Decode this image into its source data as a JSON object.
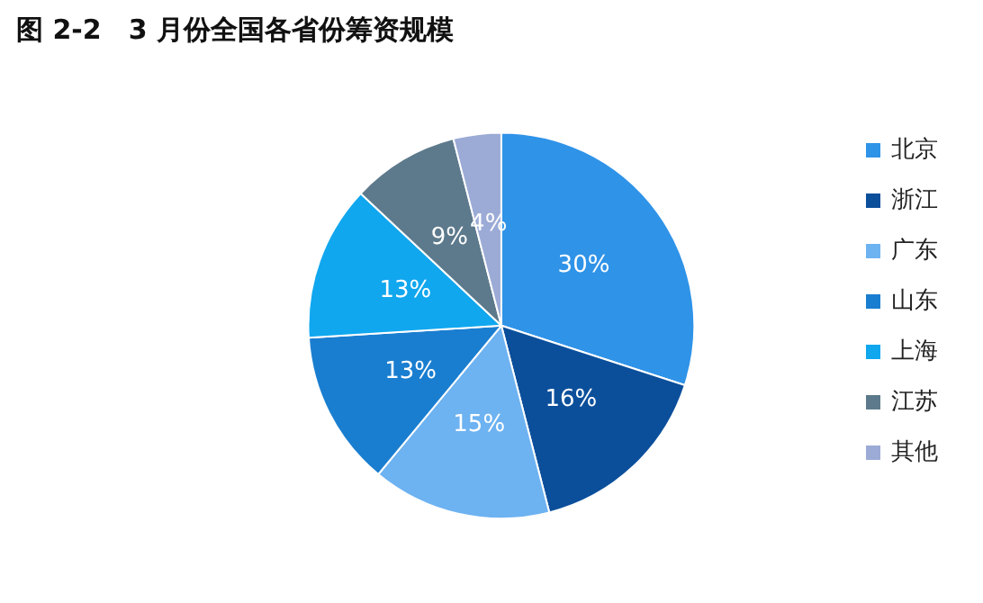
{
  "chart_data": {
    "type": "pie",
    "title": "图 2-2　3 月份全国各省份筹资规模",
    "categories": [
      "北京",
      "浙江",
      "广东",
      "山东",
      "上海",
      "江苏",
      "其他"
    ],
    "values": [
      30,
      16,
      15,
      13,
      13,
      9,
      4
    ],
    "value_labels": [
      "30%",
      "16%",
      "15%",
      "13%",
      "13%",
      "9%",
      "4%"
    ],
    "colors": [
      "#2f93e8",
      "#0b4f9b",
      "#6db2f1",
      "#1a7ed0",
      "#10a7ef",
      "#5d7a8c",
      "#9babd6"
    ],
    "legend": "right"
  }
}
